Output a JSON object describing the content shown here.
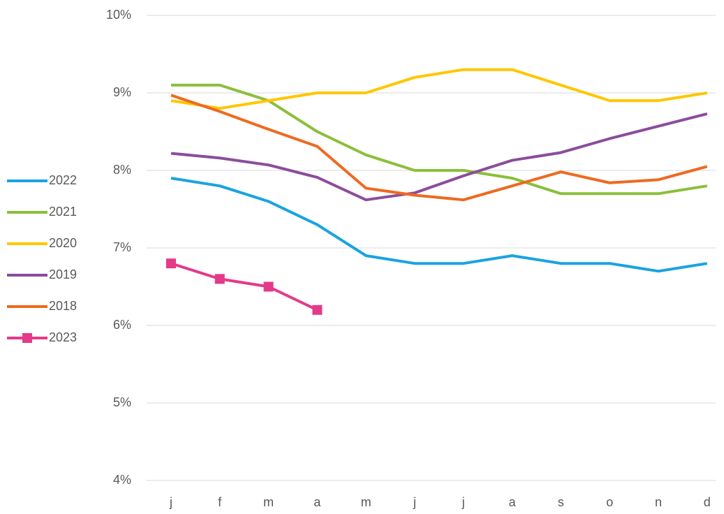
{
  "chart_data": {
    "type": "line",
    "categories": [
      "j",
      "f",
      "m",
      "a",
      "m",
      "j",
      "j",
      "a",
      "s",
      "o",
      "n",
      "d"
    ],
    "series": [
      {
        "name": "2022",
        "color": "#1aa3e0",
        "values": [
          7.9,
          7.8,
          7.6,
          7.3,
          6.9,
          6.8,
          6.8,
          6.9,
          6.8,
          6.8,
          6.7,
          6.8
        ]
      },
      {
        "name": "2021",
        "color": "#8bbf3a",
        "values": [
          9.1,
          9.1,
          8.9,
          8.5,
          8.2,
          8.0,
          8.0,
          7.9,
          7.7,
          7.7,
          7.7,
          7.8
        ]
      },
      {
        "name": "2020",
        "color": "#ffc600",
        "values": [
          8.9,
          8.8,
          8.9,
          9.0,
          9.0,
          9.2,
          9.3,
          9.3,
          9.1,
          8.9,
          8.9,
          9.0
        ]
      },
      {
        "name": "2019",
        "color": "#8c4c9c",
        "values": [
          8.22,
          8.16,
          8.07,
          7.91,
          7.62,
          7.71,
          7.93,
          8.13,
          8.23,
          8.41,
          8.57,
          8.73
        ]
      },
      {
        "name": "2018",
        "color": "#ee6a1f",
        "values": [
          8.97,
          8.76,
          8.53,
          8.31,
          7.77,
          7.68,
          7.62,
          7.8,
          7.98,
          7.84,
          7.88,
          8.05
        ]
      },
      {
        "name": "2023",
        "color": "#e5398a",
        "marker": "square",
        "values": [
          6.8,
          6.6,
          6.5,
          6.2,
          null,
          null,
          null,
          null,
          null,
          null,
          null,
          null
        ]
      }
    ],
    "ylim": [
      4,
      10
    ],
    "yticks": [
      {
        "value": 4,
        "label": "4%"
      },
      {
        "value": 5,
        "label": "5%"
      },
      {
        "value": 6,
        "label": "6%"
      },
      {
        "value": 7,
        "label": "7%"
      },
      {
        "value": 8,
        "label": "8%"
      },
      {
        "value": 9,
        "label": "9%"
      },
      {
        "value": 10,
        "label": "10%"
      }
    ],
    "grid": true,
    "legend": "left"
  }
}
